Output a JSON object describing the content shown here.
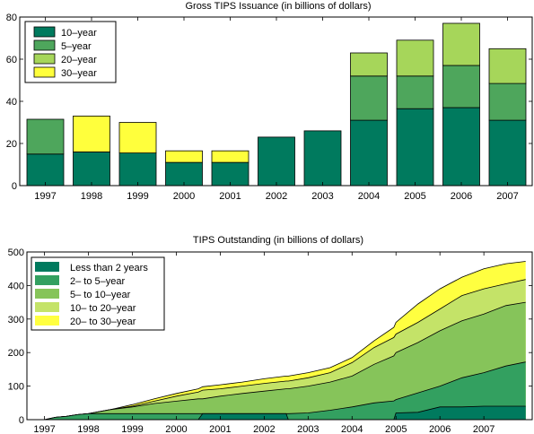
{
  "colors": {
    "c10y": "#007a5e",
    "c5y": "#4ea65c",
    "c20y": "#a6d65a",
    "c30y": "#ffff3c",
    "lt2": "#007a5e",
    "y2to5": "#33a060",
    "y5to10": "#86c45a",
    "y10to20": "#c4e368",
    "y20to30": "#ffff40"
  },
  "chart_data": [
    {
      "type": "bar",
      "stacked": true,
      "title": "Gross TIPS Issuance (in billions of dollars)",
      "categories": [
        "1997",
        "1998",
        "1999",
        "2000",
        "2001",
        "2002",
        "2003",
        "2004",
        "2005",
        "2006",
        "2007"
      ],
      "ylim": [
        0,
        80
      ],
      "yticks": [
        0,
        20,
        40,
        60,
        80
      ],
      "legend_position": "top-left",
      "series": [
        {
          "name": "10–year",
          "color_key": "c10y",
          "values": [
            15,
            16,
            15.5,
            11,
            11,
            23,
            26,
            31,
            36.5,
            37,
            31
          ]
        },
        {
          "name": "5–year",
          "color_key": "c5y",
          "values": [
            16.5,
            0,
            0,
            0,
            0,
            0,
            0,
            21,
            15.5,
            20,
            17.5
          ]
        },
        {
          "name": "20–year",
          "color_key": "c20y",
          "values": [
            0,
            0,
            0,
            0,
            0,
            0,
            0,
            11,
            17,
            20,
            16.5
          ]
        },
        {
          "name": "30–year",
          "color_key": "c30y",
          "values": [
            0,
            17,
            14.5,
            5.5,
            5.5,
            0,
            0,
            0,
            0,
            0,
            0
          ]
        }
      ]
    },
    {
      "type": "area",
      "stacked": true,
      "title": "TIPS Outstanding (in billions of dollars)",
      "xlim": [
        1996.6,
        2008.1
      ],
      "ylim": [
        0,
        500
      ],
      "xticks": [
        "1997",
        "1998",
        "1999",
        "2000",
        "2001",
        "2002",
        "2003",
        "2004",
        "2005",
        "2006",
        "2007"
      ],
      "yticks": [
        0,
        100,
        200,
        300,
        400,
        500
      ],
      "legend_position": "top-left",
      "x": [
        1997.0,
        1997.25,
        1997.5,
        1997.75,
        1998.0,
        1998.5,
        1999.0,
        1999.5,
        2000.0,
        2000.5,
        2000.6,
        2001.0,
        2001.5,
        2002.0,
        2002.5,
        2002.55,
        2003.0,
        2003.5,
        2004.0,
        2004.5,
        2004.95,
        2005.0,
        2005.5,
        2006.0,
        2006.5,
        2007.0,
        2007.5,
        2007.95
      ],
      "cumulative_tops": [
        {
          "name": "Less than 2 years",
          "color_key": "lt2",
          "values": [
            0,
            0,
            0,
            0,
            0,
            0,
            0,
            0,
            0,
            0,
            18,
            18,
            18,
            18,
            18,
            0,
            0,
            0,
            0,
            0,
            0,
            20,
            22,
            38,
            38,
            40,
            40,
            40
          ]
        },
        {
          "name": "2– to 5–year",
          "color_key": "y2to5",
          "values": [
            0,
            7,
            10,
            15,
            18,
            18,
            18,
            18,
            18,
            18,
            18,
            18,
            18,
            18,
            18,
            18,
            20,
            28,
            38,
            50,
            56,
            60,
            80,
            100,
            125,
            140,
            160,
            172
          ]
        },
        {
          "name": "5– to 10–year",
          "color_key": "y5to10",
          "values": [
            0,
            7,
            10,
            15,
            18,
            30,
            38,
            48,
            55,
            62,
            62,
            70,
            78,
            85,
            92,
            92,
            100,
            112,
            130,
            165,
            190,
            200,
            230,
            265,
            295,
            315,
            340,
            350
          ]
        },
        {
          "name": "10– to 20–year",
          "color_key": "y10to20",
          "values": [
            0,
            7,
            10,
            15,
            18,
            30,
            40,
            55,
            70,
            82,
            88,
            92,
            100,
            108,
            115,
            115,
            125,
            140,
            170,
            215,
            245,
            255,
            290,
            330,
            370,
            390,
            405,
            418
          ]
        },
        {
          "name": "20– to 30–year",
          "color_key": "y20to30",
          "values": [
            0,
            7,
            10,
            15,
            18,
            30,
            45,
            62,
            78,
            92,
            98,
            104,
            112,
            122,
            130,
            130,
            140,
            155,
            185,
            235,
            275,
            290,
            345,
            390,
            425,
            450,
            465,
            472
          ]
        }
      ]
    }
  ]
}
